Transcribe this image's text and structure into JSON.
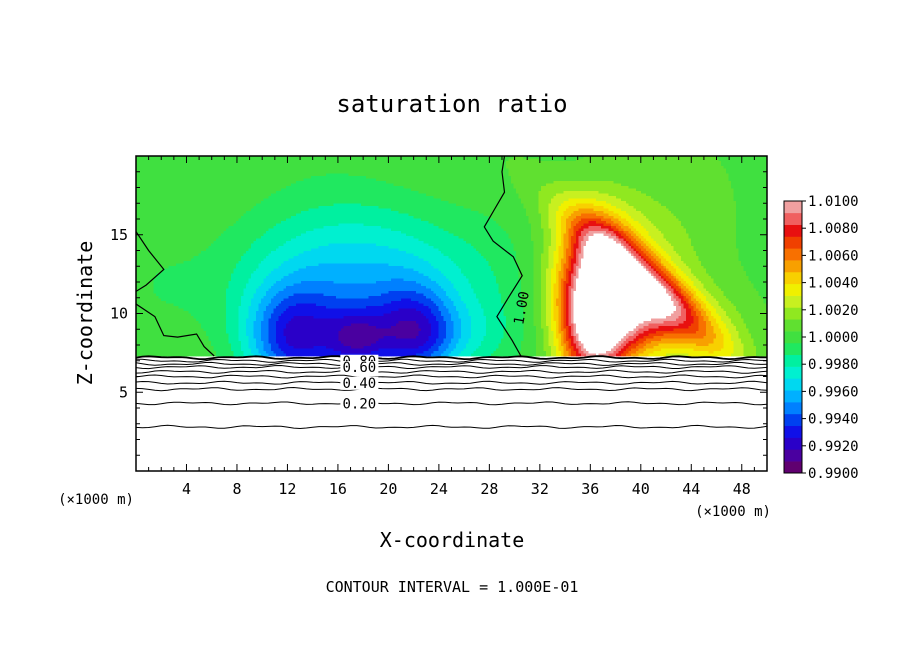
{
  "chart_data": {
    "type": "heatmap",
    "title": "saturation ratio",
    "xlabel": "X-coordinate",
    "ylabel": "Z-coordinate",
    "x_unit": "(×1000 m)",
    "y_unit": "(×1000 m)",
    "xlim": [
      0,
      50
    ],
    "ylim": [
      0,
      20
    ],
    "x_ticks": [
      4,
      8,
      12,
      16,
      20,
      24,
      28,
      32,
      36,
      40,
      44,
      48
    ],
    "y_ticks": [
      5,
      10,
      15
    ],
    "footer": "CONTOUR INTERVAL = 1.000E-01",
    "colorbar": {
      "min": 0.99,
      "max": 1.01,
      "labels": [
        "1.0100",
        "1.0080",
        "1.0060",
        "1.0040",
        "1.0020",
        "1.0000",
        "0.9980",
        "0.9960",
        "0.9940",
        "0.9920",
        "0.9900"
      ],
      "colors": [
        "#600070",
        "#4a00a0",
        "#2a00c8",
        "#1010e8",
        "#0040f0",
        "#0080ff",
        "#00b0ff",
        "#00d8f0",
        "#00f0d0",
        "#00f0a0",
        "#20e860",
        "#40e040",
        "#60e030",
        "#90e820",
        "#c8f020",
        "#f0f000",
        "#f8d000",
        "#f8a000",
        "#f87000",
        "#f04000",
        "#e81010",
        "#f06060",
        "#f0a0a0"
      ]
    },
    "contour_labels": [
      "1.00",
      "0.80",
      "0.60",
      "0.40",
      "0.20"
    ],
    "contour_levels": [
      {
        "z": 7.2,
        "label": ""
      },
      {
        "z": 7.0,
        "label": "0.80"
      },
      {
        "z": 6.8,
        "label": ""
      },
      {
        "z": 6.6,
        "label": "0.60"
      },
      {
        "z": 6.3,
        "label": ""
      },
      {
        "z": 6.0,
        "label": ""
      },
      {
        "z": 5.6,
        "label": "0.40"
      },
      {
        "z": 5.2,
        "label": ""
      },
      {
        "z": 4.3,
        "label": "0.20"
      },
      {
        "z": 2.8,
        "label": ""
      }
    ],
    "saturation_features": [
      {
        "kind": "dry",
        "x": 13,
        "z": 8.5,
        "amplitude": -0.009
      },
      {
        "kind": "dry",
        "x": 18,
        "z": 8.2,
        "amplitude": -0.006
      },
      {
        "kind": "dry",
        "x": 22,
        "z": 9.0,
        "amplitude": -0.008
      },
      {
        "kind": "moist",
        "x": 36,
        "z": 10.5,
        "amplitude": 0.01
      },
      {
        "kind": "moist",
        "x": 43,
        "z": 9.5,
        "amplitude": 0.007
      }
    ]
  }
}
